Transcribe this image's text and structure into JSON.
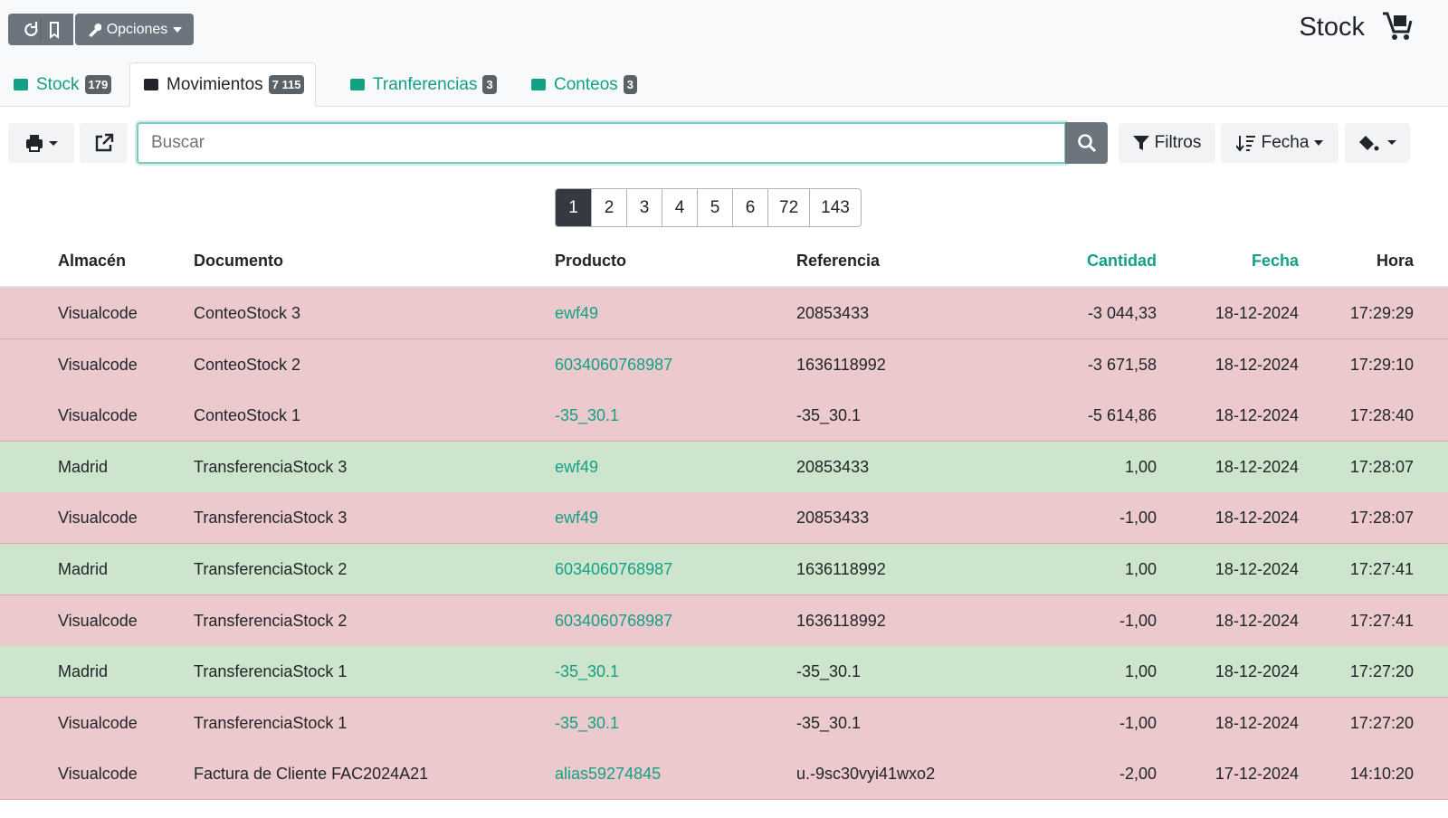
{
  "toolbar": {
    "options_button": "Opciones",
    "page_title": "Stock"
  },
  "tabs": [
    {
      "label": "Stock",
      "badge": "179"
    },
    {
      "label": "Movimientos",
      "badge": "7 115"
    },
    {
      "label": "Tranferencias",
      "badge": "3"
    },
    {
      "label": "Conteos",
      "badge": "3"
    }
  ],
  "search": {
    "placeholder": "Buscar",
    "filters_button": "Filtros",
    "sort_button": "Fecha"
  },
  "pagination": [
    "1",
    "2",
    "3",
    "4",
    "5",
    "6",
    "72",
    "143"
  ],
  "table": {
    "columns": [
      "Almacén",
      "Documento",
      "Producto",
      "Referencia",
      "Cantidad",
      "Fecha",
      "Hora"
    ],
    "rows": [
      [
        "Visualcode",
        "ConteoStock 3",
        "ewf49",
        "20853433",
        "-3 044,33",
        "18-12-2024",
        "17:29:29"
      ],
      [
        "Visualcode",
        "ConteoStock 2",
        "6034060768987",
        "1636118992",
        "-3 671,58",
        "18-12-2024",
        "17:29:10"
      ],
      [
        "Visualcode",
        "ConteoStock 1",
        "-35_30.1",
        "-35_30.1",
        "-5 614,86",
        "18-12-2024",
        "17:28:40"
      ],
      [
        "Madrid",
        "TransferenciaStock 3",
        "ewf49",
        "20853433",
        "1,00",
        "18-12-2024",
        "17:28:07"
      ],
      [
        "Visualcode",
        "TransferenciaStock 3",
        "ewf49",
        "20853433",
        "-1,00",
        "18-12-2024",
        "17:28:07"
      ],
      [
        "Madrid",
        "TransferenciaStock 2",
        "6034060768987",
        "1636118992",
        "1,00",
        "18-12-2024",
        "17:27:41"
      ],
      [
        "Visualcode",
        "TransferenciaStock 2",
        "6034060768987",
        "1636118992",
        "-1,00",
        "18-12-2024",
        "17:27:41"
      ],
      [
        "Madrid",
        "TransferenciaStock 1",
        "-35_30.1",
        "-35_30.1",
        "1,00",
        "18-12-2024",
        "17:27:20"
      ],
      [
        "Visualcode",
        "TransferenciaStock 1",
        "-35_30.1",
        "-35_30.1",
        "-1,00",
        "18-12-2024",
        "17:27:20"
      ],
      [
        "Visualcode",
        "Factura de Cliente FAC2024A21",
        "alias59274845",
        "u.-9sc30vyi41wxo2",
        "-2,00",
        "17-12-2024",
        "14:10:20"
      ]
    ]
  }
}
